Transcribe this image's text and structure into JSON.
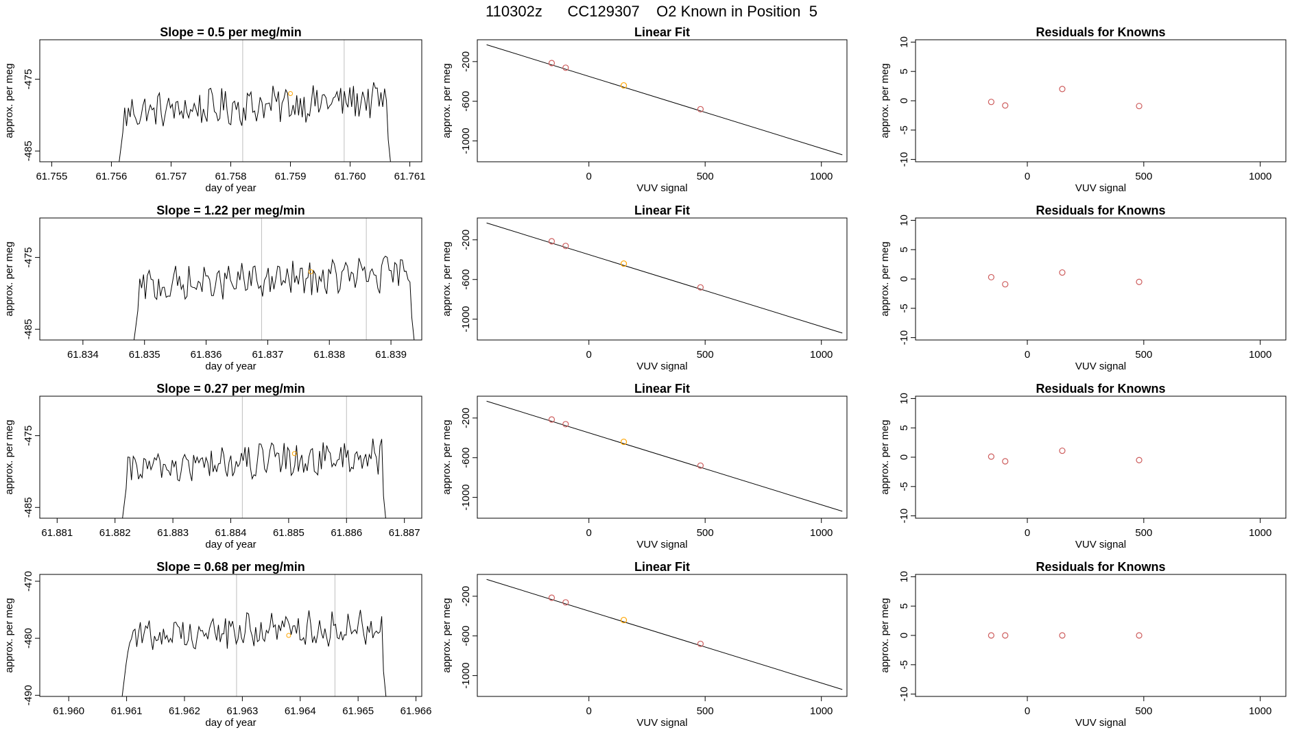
{
  "page_title": "110302z      CC129307    O2 Known in Position  5",
  "colors": {
    "line": "#000000",
    "ref_line": "#bebebe",
    "known_point": "#cd5c5c",
    "sample_point": "#ffa500",
    "frame": "#000000"
  },
  "chart_data": [
    {
      "type": "line",
      "row": 0,
      "title": "Slope =  0.5  per meg/min",
      "xlabel": "day of year",
      "ylabel": "approx. per meg",
      "xlim": [
        61.7548,
        61.7612
      ],
      "ylim": [
        -486.5,
        -469.5
      ],
      "xticks": [
        "61.755",
        "61.756",
        "61.757",
        "61.758",
        "61.759",
        "61.760",
        "61.761"
      ],
      "yticks": [
        "-475",
        "-485"
      ],
      "series_start": 61.7561,
      "series_end": 61.7607,
      "level": -478.5,
      "ref_lines": [
        61.7582,
        61.7599
      ],
      "marker": {
        "x": 61.759,
        "y": -477.0
      }
    },
    {
      "type": "scatter_fit",
      "row": 0,
      "title": "Linear Fit",
      "xlabel": "VUV signal",
      "ylabel": "approx. per meg",
      "xlim": [
        -480,
        1110
      ],
      "ylim": [
        -1210,
        20
      ],
      "xticks": [
        "0",
        "500",
        "1000"
      ],
      "yticks": [
        "-200",
        "-600",
        "-1000"
      ],
      "fit_line": {
        "x": [
          -440,
          1090
        ],
        "y": [
          -30,
          -1140
        ]
      },
      "points": [
        {
          "x": -160,
          "y": -215
        },
        {
          "x": -100,
          "y": -262
        },
        {
          "x": 150,
          "y": -440
        },
        {
          "x": 480,
          "y": -680
        }
      ],
      "highlight_index": 2
    },
    {
      "type": "scatter",
      "row": 0,
      "title": "Residuals for Knowns",
      "xlabel": "VUV signal",
      "ylabel": "approx. per meg",
      "xlim": [
        -480,
        1110
      ],
      "ylim": [
        -10.4,
        10.4
      ],
      "xticks": [
        "0",
        "500",
        "1000"
      ],
      "yticks": [
        "-10",
        "-5",
        "0",
        "5",
        "10"
      ],
      "points": [
        {
          "x": -155,
          "y": -0.2
        },
        {
          "x": -95,
          "y": -0.8
        },
        {
          "x": 150,
          "y": 2.0
        },
        {
          "x": 480,
          "y": -0.9
        }
      ]
    },
    {
      "type": "line",
      "row": 1,
      "title": "Slope =  1.22  per meg/min",
      "xlabel": "day of year",
      "ylabel": "approx. per meg",
      "xlim": [
        61.8333,
        61.8395
      ],
      "ylim": [
        -486.5,
        -469.5
      ],
      "xticks": [
        "61.834",
        "61.835",
        "61.836",
        "61.837",
        "61.838",
        "61.839"
      ],
      "yticks": [
        "-475",
        "-485"
      ],
      "series_start": 61.8348,
      "series_end": 61.8394,
      "level": -478.0,
      "ref_lines": [
        61.8369,
        61.8386
      ],
      "marker": {
        "x": 61.8377,
        "y": -477.0
      }
    },
    {
      "type": "scatter_fit",
      "row": 1,
      "title": "Linear Fit",
      "xlabel": "VUV signal",
      "ylabel": "approx. per meg",
      "xlim": [
        -480,
        1110
      ],
      "ylim": [
        -1210,
        20
      ],
      "xticks": [
        "0",
        "500",
        "1000"
      ],
      "yticks": [
        "-200",
        "-600",
        "-1000"
      ],
      "fit_line": {
        "x": [
          -440,
          1090
        ],
        "y": [
          -30,
          -1140
        ]
      },
      "points": [
        {
          "x": -160,
          "y": -215
        },
        {
          "x": -100,
          "y": -262
        },
        {
          "x": 150,
          "y": -440
        },
        {
          "x": 480,
          "y": -680
        }
      ],
      "highlight_index": 2
    },
    {
      "type": "scatter",
      "row": 1,
      "title": "Residuals for Knowns",
      "xlabel": "VUV signal",
      "ylabel": "approx. per meg",
      "xlim": [
        -480,
        1110
      ],
      "ylim": [
        -10.4,
        10.4
      ],
      "xticks": [
        "0",
        "500",
        "1000"
      ],
      "yticks": [
        "-10",
        "-5",
        "0",
        "5",
        "10"
      ],
      "points": [
        {
          "x": -155,
          "y": 0.3
        },
        {
          "x": -95,
          "y": -0.9
        },
        {
          "x": 150,
          "y": 1.1
        },
        {
          "x": 480,
          "y": -0.5
        }
      ]
    },
    {
      "type": "line",
      "row": 2,
      "title": "Slope =  0.27  per meg/min",
      "xlabel": "day of year",
      "ylabel": "approx. per meg",
      "xlim": [
        61.8807,
        61.8873
      ],
      "ylim": [
        -486.5,
        -469.5
      ],
      "xticks": [
        "61.881",
        "61.882",
        "61.883",
        "61.884",
        "61.885",
        "61.886",
        "61.887"
      ],
      "yticks": [
        "-475",
        "-485"
      ],
      "series_start": 61.8821,
      "series_end": 61.8867,
      "level": -478.5,
      "ref_lines": [
        61.8842,
        61.886
      ],
      "marker": {
        "x": 61.8851,
        "y": -477.5
      }
    },
    {
      "type": "scatter_fit",
      "row": 2,
      "title": "Linear Fit",
      "xlabel": "VUV signal",
      "ylabel": "approx. per meg",
      "xlim": [
        -480,
        1110
      ],
      "ylim": [
        -1210,
        20
      ],
      "xticks": [
        "0",
        "500",
        "1000"
      ],
      "yticks": [
        "-200",
        "-600",
        "-1000"
      ],
      "fit_line": {
        "x": [
          -440,
          1090
        ],
        "y": [
          -30,
          -1140
        ]
      },
      "points": [
        {
          "x": -160,
          "y": -215
        },
        {
          "x": -100,
          "y": -262
        },
        {
          "x": 150,
          "y": -440
        },
        {
          "x": 480,
          "y": -680
        }
      ],
      "highlight_index": 2
    },
    {
      "type": "scatter",
      "row": 2,
      "title": "Residuals for Knowns",
      "xlabel": "VUV signal",
      "ylabel": "approx. per meg",
      "xlim": [
        -480,
        1110
      ],
      "ylim": [
        -10.4,
        10.4
      ],
      "xticks": [
        "0",
        "500",
        "1000"
      ],
      "yticks": [
        "-10",
        "-5",
        "0",
        "5",
        "10"
      ],
      "points": [
        {
          "x": -155,
          "y": 0.1
        },
        {
          "x": -95,
          "y": -0.7
        },
        {
          "x": 150,
          "y": 1.1
        },
        {
          "x": 480,
          "y": -0.5
        }
      ]
    },
    {
      "type": "line",
      "row": 3,
      "title": "Slope =  0.68  per meg/min",
      "xlabel": "day of year",
      "ylabel": "approx. per meg",
      "xlim": [
        61.9595,
        61.9661
      ],
      "ylim": [
        -490.2,
        -468.8
      ],
      "xticks": [
        "61.960",
        "61.961",
        "61.962",
        "61.963",
        "61.964",
        "61.965",
        "61.966"
      ],
      "yticks": [
        "-470",
        "-480",
        "-490"
      ],
      "series_start": 61.9609,
      "series_end": 61.9655,
      "level": -478.5,
      "ref_lines": [
        61.9629,
        61.9646
      ],
      "marker": {
        "x": 61.9638,
        "y": -479.5
      }
    },
    {
      "type": "scatter_fit",
      "row": 3,
      "title": "Linear Fit",
      "xlabel": "VUV signal",
      "ylabel": "approx. per meg",
      "xlim": [
        -480,
        1110
      ],
      "ylim": [
        -1210,
        20
      ],
      "xticks": [
        "0",
        "500",
        "1000"
      ],
      "yticks": [
        "-200",
        "-600",
        "-1000"
      ],
      "fit_line": {
        "x": [
          -440,
          1090
        ],
        "y": [
          -30,
          -1140
        ]
      },
      "points": [
        {
          "x": -160,
          "y": -215
        },
        {
          "x": -100,
          "y": -262
        },
        {
          "x": 150,
          "y": -440
        },
        {
          "x": 480,
          "y": -680
        }
      ],
      "highlight_index": 2
    },
    {
      "type": "scatter",
      "row": 3,
      "title": "Residuals for Knowns",
      "xlabel": "VUV signal",
      "ylabel": "approx. per meg",
      "xlim": [
        -480,
        1110
      ],
      "ylim": [
        -10.4,
        10.4
      ],
      "xticks": [
        "0",
        "500",
        "1000"
      ],
      "yticks": [
        "-10",
        "-5",
        "0",
        "5",
        "10"
      ],
      "points": [
        {
          "x": -155,
          "y": 0.0
        },
        {
          "x": -95,
          "y": 0.0
        },
        {
          "x": 150,
          "y": 0.0
        },
        {
          "x": 480,
          "y": 0.0
        }
      ]
    }
  ]
}
